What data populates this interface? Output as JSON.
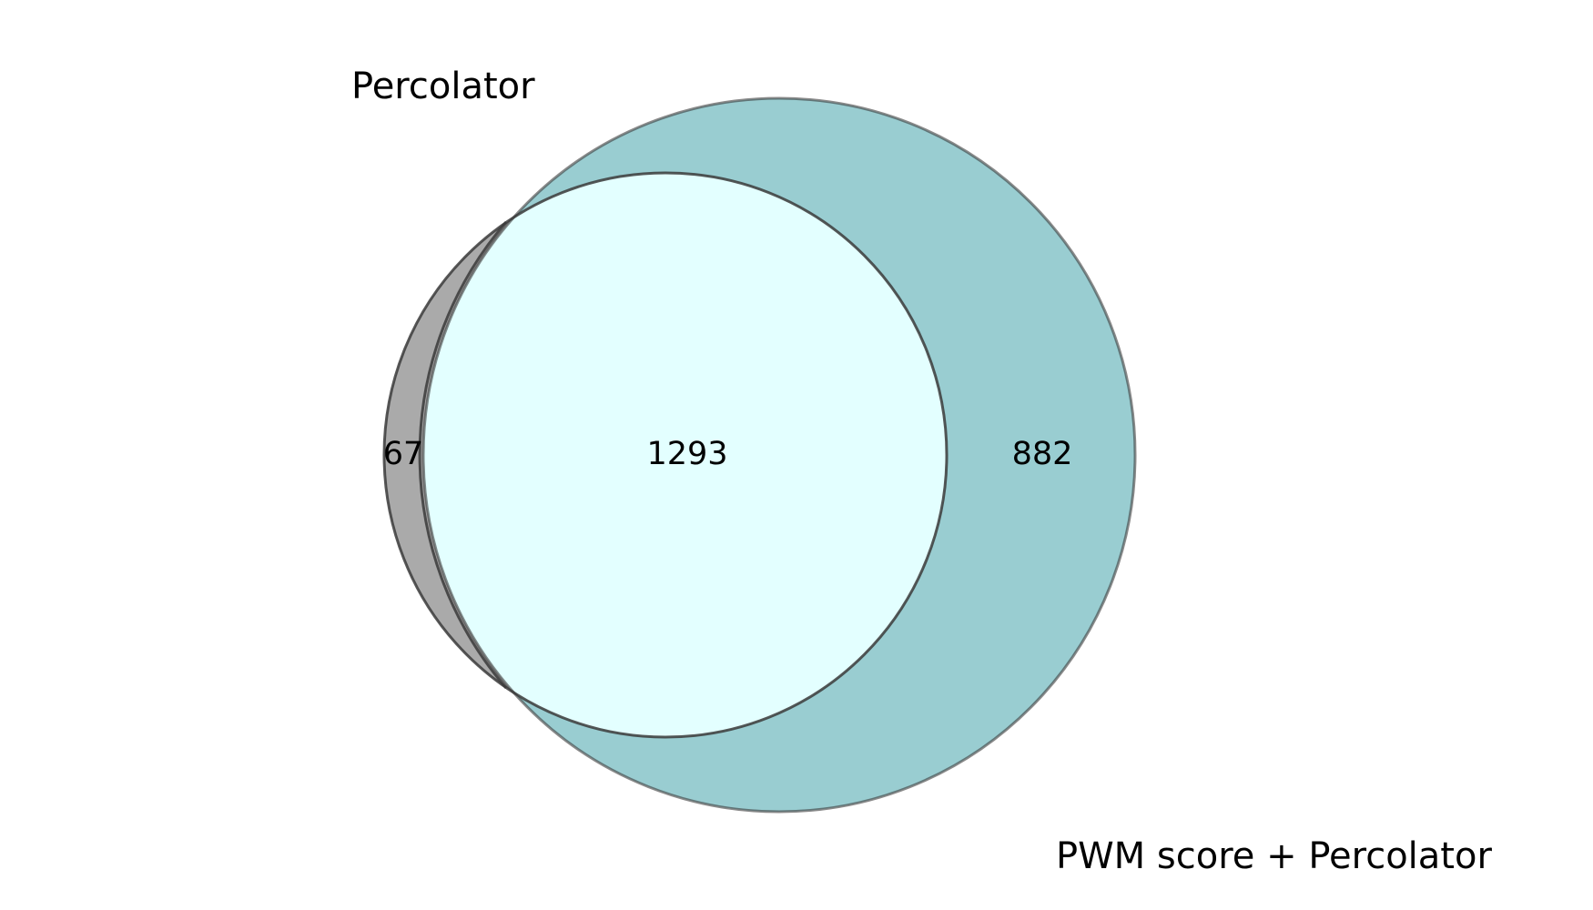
{
  "chart_data": {
    "type": "venn",
    "sets": [
      {
        "name": "Percolator",
        "size": 1360,
        "color": "#aaaaaa"
      },
      {
        "name": "PWM score + Percolator",
        "size": 2175,
        "color": "#99cdd1"
      }
    ],
    "regions": {
      "only_a": "67",
      "intersection": "1293",
      "only_b": "882"
    },
    "colors": {
      "only_a": "#aaaaaa",
      "only_b": "#99cdd1",
      "intersection": "#e3ffff",
      "outline": "#3a3a3a"
    }
  }
}
